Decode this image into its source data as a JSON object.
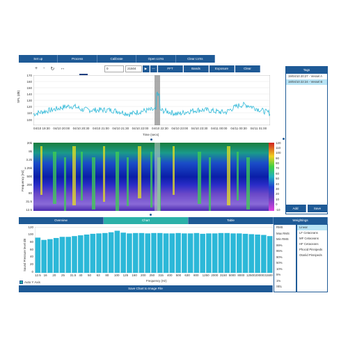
{
  "toolbar": {
    "items": [
      "Set up",
      "Process",
      "Calibrate",
      "Open LVXs",
      "Clear LVXs"
    ]
  },
  "controls": {
    "field1": "0",
    "field2": "21504",
    "play_symbol": "▶",
    "stop_symbol": "—",
    "buttons": [
      "FFT",
      "Bands",
      "Exposure",
      "Clear"
    ],
    "nav_icons": [
      "+",
      "-",
      "↻",
      "↔"
    ]
  },
  "tags": {
    "header": "Tags",
    "items": [
      "19/04/10 20:27 - Vessel A",
      "19/04/10 22:24 - Vessel B"
    ],
    "selected_index": 1,
    "add_label": "Add",
    "save_label": "Save"
  },
  "timeseries": {
    "ylabel": "SPL (dB)",
    "xlabel": "Time (secs)",
    "yticks": [
      "170",
      "160",
      "150",
      "140",
      "130",
      "120",
      "110",
      "100"
    ],
    "xticks": [
      "04/10 19:30",
      "04/10 20:00",
      "04/10 20:30",
      "04/10 21:00",
      "04/10 21:30",
      "04/10 22:00",
      "04/10 22:30",
      "04/10 23:00",
      "04/10 23:30",
      "04/11 00:00",
      "04/11 00:30",
      "04/11 01:00"
    ]
  },
  "spectrogram": {
    "ylabel": "Frequency [Hz]",
    "yticks": [
      "20k",
      "8k",
      "3.2k",
      "1.25k",
      "500",
      "200",
      "80",
      "31.5",
      "12.5"
    ],
    "colorbar": [
      "120",
      "110",
      "100",
      "90",
      "80",
      "70",
      "60",
      "50",
      "40",
      "30",
      "20",
      "10",
      "0",
      "-10"
    ]
  },
  "tabs": {
    "items": [
      "Overview",
      "Chart",
      "Table",
      "Weightings"
    ],
    "active_index": 1
  },
  "metrics": [
    "RMS",
    "Max RMS",
    "Min RMS",
    "99%",
    "95%",
    "90%",
    "50%",
    "10%",
    "5%",
    "1%",
    "SEL"
  ],
  "weightings": [
    "Linear",
    "LF Cetaceans",
    "MF Cetaceans",
    "HF Cetaceans",
    "Phocid Pinnipeds",
    "Otariid Pinnipeds"
  ],
  "weightings_selected": 0,
  "auto_y_label": "Auto Y Axis",
  "save_chart_label": "Save Chart to Image File",
  "chart_data": {
    "type": "bar",
    "ylabel": "Sound Pressure level dB",
    "xlabel": "Frequency (Hz)",
    "ylim": [
      0,
      120
    ],
    "yticks": [
      "120",
      "100",
      "80",
      "60",
      "40",
      "20",
      "0"
    ],
    "xtick_labels": [
      "12.5",
      "16",
      "20",
      "25",
      "31.5",
      "40",
      "50",
      "63",
      "80",
      "100",
      "125",
      "160",
      "200",
      "250",
      "315",
      "400",
      "500",
      "630",
      "800",
      "1250",
      "2000",
      "3150",
      "5000",
      "8000",
      "12500",
      "20000",
      "31500"
    ],
    "values": [
      92,
      86,
      88,
      91,
      94,
      94,
      96,
      98,
      100,
      102,
      103,
      104,
      106,
      110,
      105,
      103,
      104,
      104,
      103,
      104,
      104,
      103,
      103,
      104,
      103,
      103,
      104,
      102,
      103,
      103,
      104,
      104,
      103,
      103,
      102,
      101,
      100,
      99,
      96
    ],
    "color": "#2cb8d8"
  }
}
